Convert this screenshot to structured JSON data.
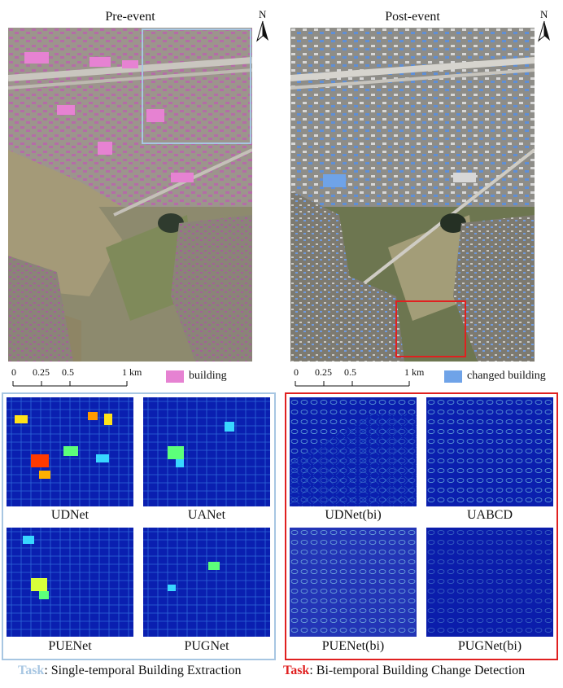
{
  "maps": {
    "pre": {
      "title": "Pre-event"
    },
    "post": {
      "title": "Post-event"
    },
    "north_label": "N"
  },
  "scalebar": {
    "ticks": [
      "0",
      "0.25",
      "0.5",
      "1 km"
    ]
  },
  "legend": {
    "building": {
      "label": "building",
      "color": "#e682d2"
    },
    "changed": {
      "label": "changed building",
      "color": "#6fa3e8"
    }
  },
  "highlight": {
    "left_color": "#a7c6e2",
    "right_color": "#e02020"
  },
  "panels": {
    "extraction": [
      "UDNet",
      "UANet",
      "PUENet",
      "PUGNet"
    ],
    "change": [
      "UDNet(bi)",
      "UABCD",
      "PUENet(bi)",
      "PUGNet(bi)"
    ]
  },
  "tasks": {
    "left": {
      "prefix": "Task",
      "text": ": Single-temporal Building Extraction"
    },
    "right": {
      "prefix": "Task",
      "text": ": Bi-temporal Building Change Detection"
    }
  }
}
